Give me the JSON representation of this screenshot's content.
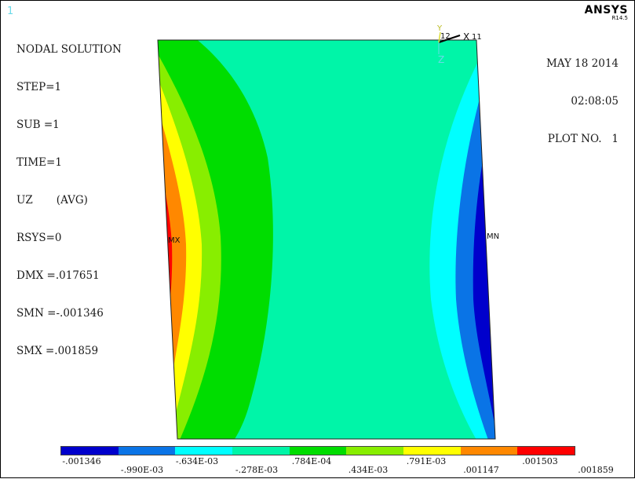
{
  "window_number": "1",
  "brand": {
    "name": "ANSYS",
    "version": "R14.5"
  },
  "title": "NODAL SOLUTION",
  "info_lines": [
    "STEP=1",
    "SUB =1",
    "TIME=1",
    "UZ       (AVG)",
    "RSYS=0",
    "DMX =.017651",
    "SMN =-.001346",
    "SMX =.001859"
  ],
  "stamp": {
    "date": "MAY 18 2014",
    "time": "02:08:05",
    "plot": "PLOT NO.   1"
  },
  "markers": {
    "mx": "MX",
    "mn": "MN"
  },
  "triad": {
    "x": "X",
    "y": "Y",
    "z": "Z",
    "node_a": "12",
    "node_b": "11"
  },
  "legend": {
    "colors": [
      "#0000cc",
      "#0a74e6",
      "#00ffff",
      "#00f5a8",
      "#00dd00",
      "#88ee00",
      "#ffff00",
      "#ff8800",
      "#ff0000"
    ],
    "labels": [
      "-.001346",
      "-.990E-03",
      "-.634E-03",
      "-.278E-03",
      ".784E-04",
      ".434E-03",
      ".791E-03",
      ".001147",
      ".001503",
      ".001859"
    ]
  }
}
